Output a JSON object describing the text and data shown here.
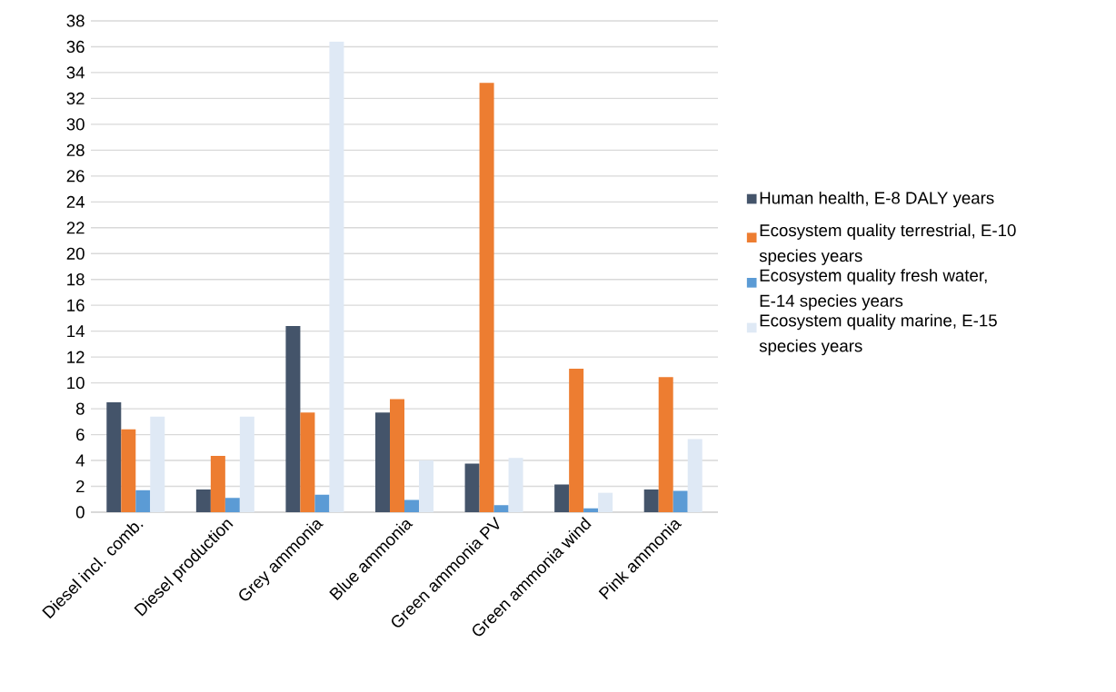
{
  "chart_data": {
    "type": "bar",
    "categories": [
      "Diesel incl. comb.",
      "Diesel production",
      "Grey ammonia",
      "Blue ammonia",
      "Green ammonia PV",
      "Green ammonia wind",
      "Pink ammonia"
    ],
    "series": [
      {
        "name": "Human health, E-8 DALY years",
        "color": "#44546a",
        "values": [
          8.5,
          1.75,
          14.4,
          7.7,
          3.75,
          2.15,
          1.75
        ]
      },
      {
        "name": "Ecosystem quality terrestrial, E-10 species years",
        "color": "#ed7d31",
        "values": [
          6.4,
          4.35,
          7.7,
          8.75,
          33.2,
          11.1,
          10.45
        ]
      },
      {
        "name": "Ecosystem quality fresh water, E-14 species years",
        "color": "#5b9bd5",
        "values": [
          1.7,
          1.1,
          1.35,
          0.95,
          0.55,
          0.3,
          1.65
        ]
      },
      {
        "name": "Ecosystem quality marine, E-15 species years",
        "color": "#dfe9f5",
        "values": [
          7.4,
          7.4,
          36.4,
          4.0,
          4.2,
          1.5,
          5.65
        ]
      }
    ],
    "ylim": [
      0,
      38
    ],
    "yticks": [
      0,
      2,
      4,
      6,
      8,
      10,
      12,
      14,
      16,
      18,
      20,
      22,
      24,
      26,
      28,
      30,
      32,
      34,
      36,
      38
    ],
    "grid": "y",
    "legend": "right"
  }
}
